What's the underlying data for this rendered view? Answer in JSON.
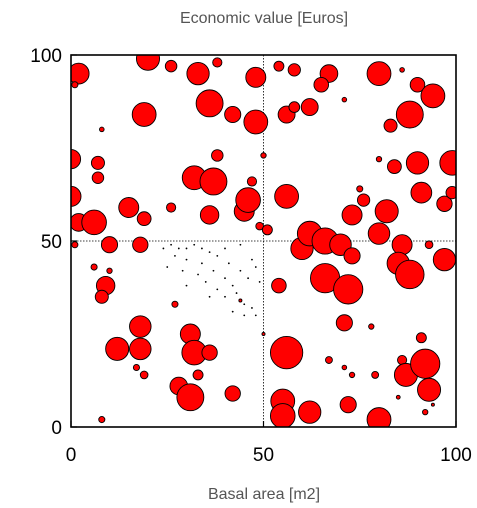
{
  "chart_data": {
    "type": "scatter",
    "title": "Economic value [Euros]",
    "xlabel": "Basal area [m2]",
    "ylabel": "",
    "xlim": [
      0,
      100
    ],
    "ylim": [
      0,
      100
    ],
    "x_ticks": [
      "0",
      "50",
      "100"
    ],
    "y_ticks": [
      "0",
      "50",
      "100"
    ],
    "reference_lines": {
      "x": 50,
      "y": 50
    },
    "colors": {
      "fill": "#ff0000",
      "stroke": "#000000",
      "guide": "#000000"
    },
    "points": [
      [
        2,
        95,
        2.7
      ],
      [
        20,
        99,
        3.0
      ],
      [
        26,
        97,
        1.5
      ],
      [
        33,
        95,
        2.9
      ],
      [
        38,
        98,
        1.2
      ],
      [
        48,
        94,
        2.6
      ],
      [
        54,
        97,
        1.3
      ],
      [
        58,
        96,
        1.6
      ],
      [
        67,
        95,
        2.3
      ],
      [
        80,
        95,
        3.1
      ],
      [
        90,
        92,
        1.9
      ],
      [
        94,
        89,
        3.1
      ],
      [
        86,
        96,
        0.6
      ],
      [
        1,
        92,
        0.8
      ],
      [
        19,
        84,
        3.1
      ],
      [
        36,
        87,
        3.5
      ],
      [
        42,
        84,
        2.1
      ],
      [
        48,
        82,
        3.1
      ],
      [
        56,
        84,
        2.2
      ],
      [
        58,
        86,
        1.4
      ],
      [
        62,
        86,
        2.2
      ],
      [
        88,
        84,
        3.5
      ],
      [
        83,
        81,
        1.7
      ],
      [
        65,
        92,
        1.9
      ],
      [
        71,
        88,
        0.6
      ],
      [
        8,
        80,
        0.6
      ],
      [
        0,
        72,
        2.5
      ],
      [
        7,
        71,
        1.7
      ],
      [
        7,
        67,
        1.5
      ],
      [
        30,
        68,
        0.6
      ],
      [
        32,
        67,
        3.1
      ],
      [
        37,
        66,
        3.5
      ],
      [
        38,
        73,
        1.5
      ],
      [
        47,
        66,
        1.2
      ],
      [
        50,
        73,
        0.7
      ],
      [
        75,
        64,
        0.8
      ],
      [
        80,
        72,
        0.7
      ],
      [
        84,
        70,
        1.8
      ],
      [
        90,
        71,
        2.9
      ],
      [
        99,
        71,
        3.2
      ],
      [
        0,
        62,
        2.6
      ],
      [
        15,
        59,
        2.6
      ],
      [
        19,
        56,
        1.8
      ],
      [
        26,
        59,
        1.2
      ],
      [
        36,
        57,
        2.4
      ],
      [
        45,
        58,
        2.6
      ],
      [
        46,
        61,
        3.2
      ],
      [
        49,
        54,
        1.0
      ],
      [
        56,
        62,
        3.1
      ],
      [
        73,
        57,
        2.6
      ],
      [
        76,
        61,
        1.6
      ],
      [
        82,
        58,
        3.0
      ],
      [
        91,
        63,
        2.7
      ],
      [
        97,
        60,
        2.0
      ],
      [
        99,
        63,
        1.6
      ],
      [
        2,
        55,
        2.3
      ],
      [
        6,
        55,
        3.2
      ],
      [
        10,
        49,
        2.1
      ],
      [
        18,
        49,
        2.0
      ],
      [
        1,
        49,
        0.8
      ],
      [
        51,
        53,
        1.3
      ],
      [
        60,
        48,
        2.9
      ],
      [
        62,
        52,
        3.2
      ],
      [
        66,
        50,
        3.4
      ],
      [
        70,
        49,
        2.8
      ],
      [
        80,
        52,
        2.8
      ],
      [
        86,
        49,
        2.6
      ],
      [
        93,
        49,
        1.0
      ],
      [
        97,
        45,
        2.9
      ],
      [
        6,
        43,
        0.8
      ],
      [
        10,
        42,
        0.7
      ],
      [
        9,
        38,
        2.4
      ],
      [
        8,
        35,
        1.7
      ],
      [
        27,
        33,
        0.8
      ],
      [
        44,
        34,
        0.4
      ],
      [
        54,
        38,
        1.9
      ],
      [
        66,
        40,
        3.8
      ],
      [
        72,
        37,
        3.8
      ],
      [
        73,
        46,
        2.1
      ],
      [
        85,
        44,
        2.9
      ],
      [
        88,
        41,
        3.7
      ],
      [
        18,
        27,
        2.8
      ],
      [
        12,
        21,
        3.0
      ],
      [
        18,
        21,
        2.8
      ],
      [
        31,
        25,
        2.6
      ],
      [
        32,
        20,
        3.2
      ],
      [
        36,
        20,
        2.0
      ],
      [
        56,
        20,
        4.2
      ],
      [
        71,
        28,
        2.1
      ],
      [
        50,
        25,
        0.4
      ],
      [
        78,
        27,
        0.7
      ],
      [
        91,
        24,
        1.3
      ],
      [
        86,
        18,
        1.2
      ],
      [
        17,
        16,
        0.8
      ],
      [
        19,
        14,
        1.0
      ],
      [
        28,
        11,
        2.3
      ],
      [
        31,
        8,
        3.5
      ],
      [
        33,
        14,
        1.3
      ],
      [
        42,
        9,
        2.0
      ],
      [
        55,
        7,
        3.1
      ],
      [
        55,
        3,
        3.2
      ],
      [
        62,
        4,
        2.9
      ],
      [
        67,
        18,
        0.9
      ],
      [
        71,
        16,
        0.6
      ],
      [
        72,
        6,
        2.1
      ],
      [
        73,
        14,
        0.7
      ],
      [
        79,
        14,
        0.9
      ],
      [
        87,
        14,
        3.0
      ],
      [
        92,
        17,
        3.8
      ],
      [
        93,
        10,
        3.0
      ],
      [
        92,
        4,
        0.7
      ],
      [
        94,
        6,
        0.4
      ],
      [
        85,
        8,
        0.5
      ],
      [
        80,
        2,
        3.1
      ],
      [
        8,
        2,
        0.8
      ]
    ],
    "small_points": [
      [
        24,
        48
      ],
      [
        26,
        49
      ],
      [
        28,
        48
      ],
      [
        30,
        48
      ],
      [
        32,
        49
      ],
      [
        34,
        48
      ],
      [
        36,
        47
      ],
      [
        40,
        48
      ],
      [
        44,
        49
      ],
      [
        27,
        46
      ],
      [
        30,
        45
      ],
      [
        34,
        44
      ],
      [
        38,
        46
      ],
      [
        41,
        44
      ],
      [
        47,
        45
      ],
      [
        25,
        43
      ],
      [
        29,
        42
      ],
      [
        33,
        41
      ],
      [
        37,
        42
      ],
      [
        40,
        40
      ],
      [
        44,
        42
      ],
      [
        48,
        43
      ],
      [
        30,
        38
      ],
      [
        35,
        39
      ],
      [
        38,
        37
      ],
      [
        42,
        38
      ],
      [
        46,
        40
      ],
      [
        49,
        39
      ],
      [
        36,
        35
      ],
      [
        40,
        35
      ],
      [
        43,
        36
      ],
      [
        45,
        33
      ],
      [
        47,
        32
      ],
      [
        42,
        31
      ],
      [
        45,
        30
      ],
      [
        48,
        30
      ]
    ],
    "legend": "none",
    "grid": false
  }
}
